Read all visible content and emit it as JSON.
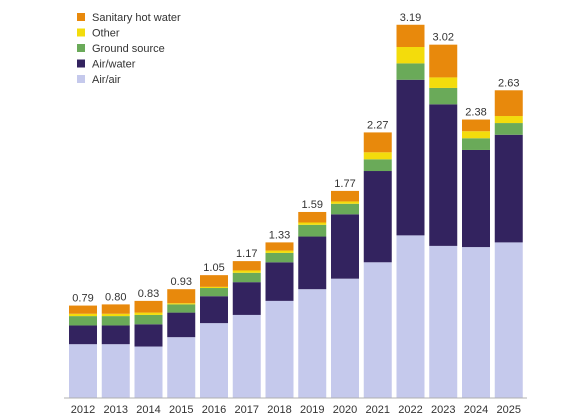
{
  "chart_data": {
    "type": "bar",
    "stacked": true,
    "title": "",
    "xlabel": "",
    "ylabel": "",
    "ylim": [
      0,
      3.3
    ],
    "grid": false,
    "legend_position": "top-left",
    "categories": [
      "2012",
      "2013",
      "2014",
      "2015",
      "2016",
      "2017",
      "2018",
      "2019",
      "2020",
      "2021",
      "2022",
      "2023",
      "2024",
      "2025"
    ],
    "totals": [
      0.79,
      0.8,
      0.83,
      0.93,
      1.05,
      1.17,
      1.33,
      1.59,
      1.77,
      2.27,
      3.19,
      3.02,
      2.38,
      2.63
    ],
    "total_labels": [
      "0.79",
      "0.80",
      "0.83",
      "0.93",
      "1.05",
      "1.17",
      "1.33",
      "1.59",
      "1.77",
      "2.27",
      "3.19",
      "3.02",
      "2.38",
      "2.63"
    ],
    "series": [
      {
        "name": "Air/air",
        "color": "#c5c9ec",
        "values": [
          0.46,
          0.46,
          0.44,
          0.52,
          0.64,
          0.71,
          0.83,
          0.93,
          1.02,
          1.16,
          1.39,
          1.3,
          1.29,
          1.33
        ]
      },
      {
        "name": "Air/water",
        "color": "#33235f",
        "values": [
          0.16,
          0.16,
          0.19,
          0.21,
          0.23,
          0.28,
          0.33,
          0.45,
          0.55,
          0.78,
          1.33,
          1.21,
          0.83,
          0.92
        ]
      },
      {
        "name": "Ground source",
        "color": "#6aaa59",
        "values": [
          0.08,
          0.08,
          0.08,
          0.07,
          0.07,
          0.08,
          0.08,
          0.1,
          0.09,
          0.1,
          0.14,
          0.14,
          0.1,
          0.1
        ]
      },
      {
        "name": "Other",
        "color": "#f3dc0c",
        "values": [
          0.02,
          0.02,
          0.02,
          0.01,
          0.01,
          0.02,
          0.02,
          0.02,
          0.02,
          0.06,
          0.14,
          0.09,
          0.06,
          0.06
        ]
      },
      {
        "name": "Sanitary hot water",
        "color": "#e8890c",
        "values": [
          0.07,
          0.08,
          0.1,
          0.12,
          0.1,
          0.08,
          0.07,
          0.09,
          0.09,
          0.17,
          0.19,
          0.28,
          0.1,
          0.22
        ]
      }
    ],
    "legend_order": [
      "Sanitary hot water",
      "Other",
      "Ground source",
      "Air/water",
      "Air/air"
    ]
  }
}
